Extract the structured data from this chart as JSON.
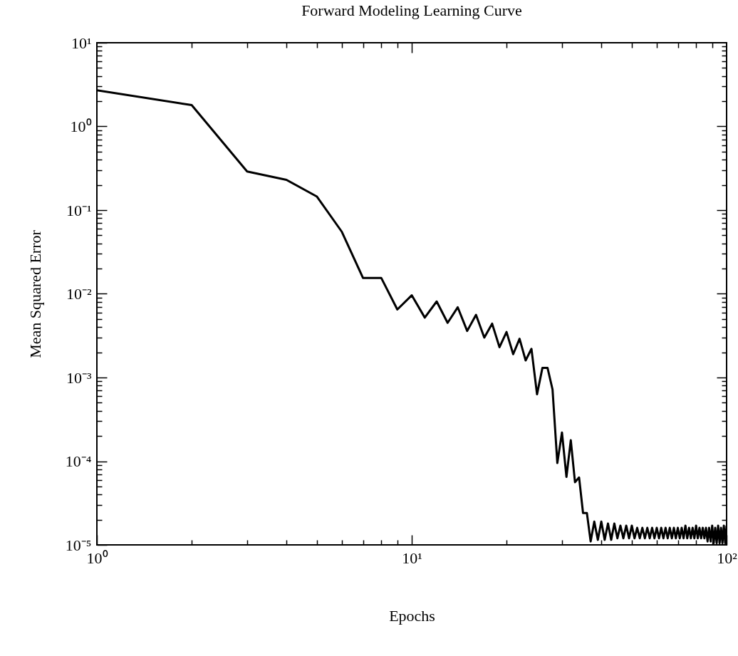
{
  "chart_data": {
    "type": "line",
    "title": "Forward Modeling Learning Curve",
    "xlabel": "Epochs",
    "ylabel": "Mean Squared Error",
    "log": "xy",
    "color": "#000000",
    "line_style": "solid",
    "xlim": [
      1,
      100
    ],
    "ylim": [
      1e-05,
      10
    ],
    "xticks": [
      {
        "value": 1,
        "label": "10⁰"
      },
      {
        "value": 2,
        "label": null
      },
      {
        "value": 3,
        "label": null
      },
      {
        "value": 4,
        "label": null
      },
      {
        "value": 5,
        "label": null
      },
      {
        "value": 6,
        "label": null
      },
      {
        "value": 7,
        "label": null
      },
      {
        "value": 8,
        "label": null
      },
      {
        "value": 9,
        "label": null
      },
      {
        "value": 10,
        "label": "10¹"
      },
      {
        "value": 20,
        "label": null
      },
      {
        "value": 30,
        "label": null
      },
      {
        "value": 40,
        "label": null
      },
      {
        "value": 50,
        "label": null
      },
      {
        "value": 60,
        "label": null
      },
      {
        "value": 70,
        "label": null
      },
      {
        "value": 80,
        "label": null
      },
      {
        "value": 90,
        "label": null
      },
      {
        "value": 100,
        "label": "10²"
      }
    ],
    "yticks": [
      {
        "value": 1e-05,
        "label": "10⁻⁵"
      },
      {
        "value": 2e-05,
        "label": null
      },
      {
        "value": 3e-05,
        "label": null
      },
      {
        "value": 4e-05,
        "label": null
      },
      {
        "value": 5e-05,
        "label": null
      },
      {
        "value": 6e-05,
        "label": null
      },
      {
        "value": 7e-05,
        "label": null
      },
      {
        "value": 8e-05,
        "label": null
      },
      {
        "value": 9e-05,
        "label": null
      },
      {
        "value": 0.0001,
        "label": "10⁻⁴"
      },
      {
        "value": 0.0002,
        "label": null
      },
      {
        "value": 0.0003,
        "label": null
      },
      {
        "value": 0.0004,
        "label": null
      },
      {
        "value": 0.0005,
        "label": null
      },
      {
        "value": 0.0006,
        "label": null
      },
      {
        "value": 0.0007,
        "label": null
      },
      {
        "value": 0.0008,
        "label": null
      },
      {
        "value": 0.0009,
        "label": null
      },
      {
        "value": 0.001,
        "label": "10⁻³"
      },
      {
        "value": 0.002,
        "label": null
      },
      {
        "value": 0.003,
        "label": null
      },
      {
        "value": 0.004,
        "label": null
      },
      {
        "value": 0.005,
        "label": null
      },
      {
        "value": 0.006,
        "label": null
      },
      {
        "value": 0.007,
        "label": null
      },
      {
        "value": 0.008,
        "label": null
      },
      {
        "value": 0.009,
        "label": null
      },
      {
        "value": 0.01,
        "label": "10⁻²"
      },
      {
        "value": 0.02,
        "label": null
      },
      {
        "value": 0.03,
        "label": null
      },
      {
        "value": 0.04,
        "label": null
      },
      {
        "value": 0.05,
        "label": null
      },
      {
        "value": 0.06,
        "label": null
      },
      {
        "value": 0.07,
        "label": null
      },
      {
        "value": 0.08,
        "label": null
      },
      {
        "value": 0.09,
        "label": null
      },
      {
        "value": 0.1,
        "label": "10⁻¹"
      },
      {
        "value": 0.2,
        "label": null
      },
      {
        "value": 0.3,
        "label": null
      },
      {
        "value": 0.4,
        "label": null
      },
      {
        "value": 0.5,
        "label": null
      },
      {
        "value": 0.6,
        "label": null
      },
      {
        "value": 0.7,
        "label": null
      },
      {
        "value": 0.8,
        "label": null
      },
      {
        "value": 0.9,
        "label": null
      },
      {
        "value": 1,
        "label": "10⁰"
      },
      {
        "value": 2,
        "label": null
      },
      {
        "value": 3,
        "label": null
      },
      {
        "value": 4,
        "label": null
      },
      {
        "value": 5,
        "label": null
      },
      {
        "value": 6,
        "label": null
      },
      {
        "value": 7,
        "label": null
      },
      {
        "value": 8,
        "label": null
      },
      {
        "value": 9,
        "label": null
      },
      {
        "value": 10,
        "label": "10¹"
      }
    ],
    "x": [
      1,
      2,
      3,
      4,
      5,
      6,
      7,
      8,
      9,
      10,
      11,
      12,
      13,
      14,
      15,
      16,
      17,
      18,
      19,
      20,
      21,
      22,
      23,
      24,
      25,
      26,
      27,
      28,
      29,
      30,
      31,
      32,
      33,
      34,
      35,
      36,
      37,
      38,
      39,
      40,
      41,
      42,
      43,
      44,
      45,
      46,
      47,
      48,
      49,
      50,
      51,
      52,
      53,
      54,
      55,
      56,
      57,
      58,
      59,
      60,
      61,
      62,
      63,
      64,
      65,
      66,
      67,
      68,
      69,
      70,
      71,
      72,
      73,
      74,
      75,
      76,
      77,
      78,
      79,
      80,
      81,
      82,
      83,
      84,
      85,
      86,
      87,
      88,
      89,
      90,
      91,
      92,
      93,
      94,
      95,
      96,
      97,
      98,
      99,
      100
    ],
    "values": [
      2.7,
      1.8,
      0.29,
      0.23,
      0.145,
      0.055,
      0.0155,
      0.0155,
      0.0065,
      0.0096,
      0.0052,
      0.0081,
      0.0045,
      0.0069,
      0.0036,
      0.0056,
      0.003,
      0.0044,
      0.0023,
      0.0035,
      0.0019,
      0.0029,
      0.0016,
      0.0022,
      0.00063,
      0.0013,
      0.0013,
      0.00072,
      9.5e-05,
      0.00022,
      6.5e-05,
      0.000178,
      5.6e-05,
      6.4e-05,
      2.4e-05,
      2.4e-05,
      1.1e-05,
      1.9e-05,
      1.15e-05,
      1.9e-05,
      1.15e-05,
      1.8e-05,
      1.15e-05,
      1.8e-05,
      1.2e-05,
      1.7e-05,
      1.2e-05,
      1.7e-05,
      1.2e-05,
      1.7e-05,
      1.2e-05,
      1.6e-05,
      1.2e-05,
      1.6e-05,
      1.2e-05,
      1.6e-05,
      1.2e-05,
      1.6e-05,
      1.2e-05,
      1.6e-05,
      1.2e-05,
      1.6e-05,
      1.2e-05,
      1.6e-05,
      1.2e-05,
      1.6e-05,
      1.2e-05,
      1.6e-05,
      1.2e-05,
      1.6e-05,
      1.2e-05,
      1.6e-05,
      1.2e-05,
      1.7e-05,
      1.2e-05,
      1.6e-05,
      1.2e-05,
      1.6e-05,
      1.2e-05,
      1.7e-05,
      1.2e-05,
      1.6e-05,
      1.2e-05,
      1.6e-05,
      1.2e-05,
      1.6e-05,
      1.1e-05,
      1.6e-05,
      1.1e-05,
      1.7e-05,
      1.05e-05,
      1.6e-05,
      1.05e-05,
      1.7e-05,
      1.05e-05,
      1.6e-05,
      1.05e-05,
      1.7e-05,
      1.05e-05,
      1.7e-05
    ]
  }
}
